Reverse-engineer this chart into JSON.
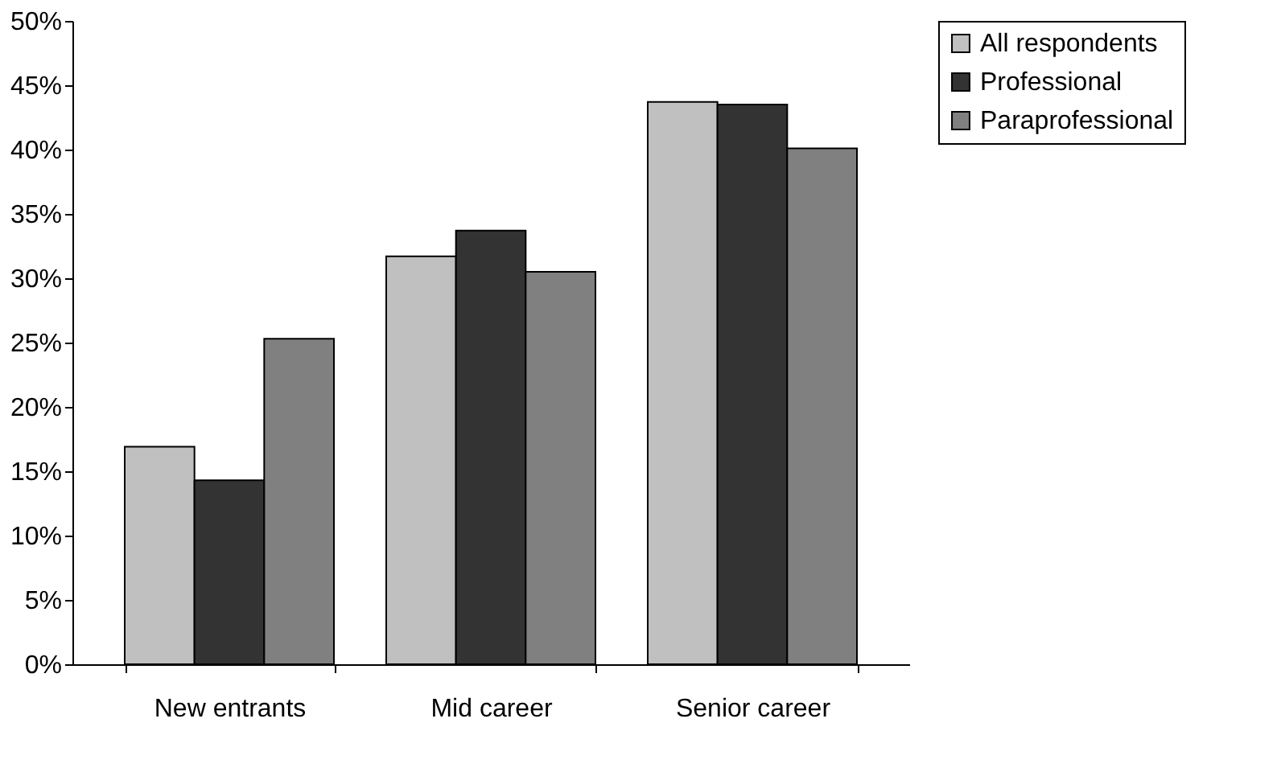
{
  "chart_data": {
    "type": "bar",
    "categories": [
      "New entrants",
      "Mid career",
      "Senior career"
    ],
    "series": [
      {
        "name": "All respondents",
        "color": "#c0c0c0",
        "values": [
          16.9,
          31.7,
          43.7
        ]
      },
      {
        "name": "Professional",
        "color": "#333333",
        "values": [
          14.3,
          33.7,
          43.5
        ]
      },
      {
        "name": "Paraprofessional",
        "color": "#808080",
        "values": [
          25.3,
          30.5,
          40.1
        ]
      }
    ],
    "ylim": [
      0,
      50
    ],
    "yticks": [
      {
        "value": 0,
        "label": "0%"
      },
      {
        "value": 5,
        "label": "5%"
      },
      {
        "value": 10,
        "label": "10%"
      },
      {
        "value": 15,
        "label": "15%"
      },
      {
        "value": 20,
        "label": "20%"
      },
      {
        "value": 25,
        "label": "25%"
      },
      {
        "value": 30,
        "label": "30%"
      },
      {
        "value": 35,
        "label": "35%"
      },
      {
        "value": 40,
        "label": "40%"
      },
      {
        "value": 45,
        "label": "45%"
      },
      {
        "value": 50,
        "label": "50%"
      }
    ],
    "grid": false,
    "legend": "right"
  }
}
